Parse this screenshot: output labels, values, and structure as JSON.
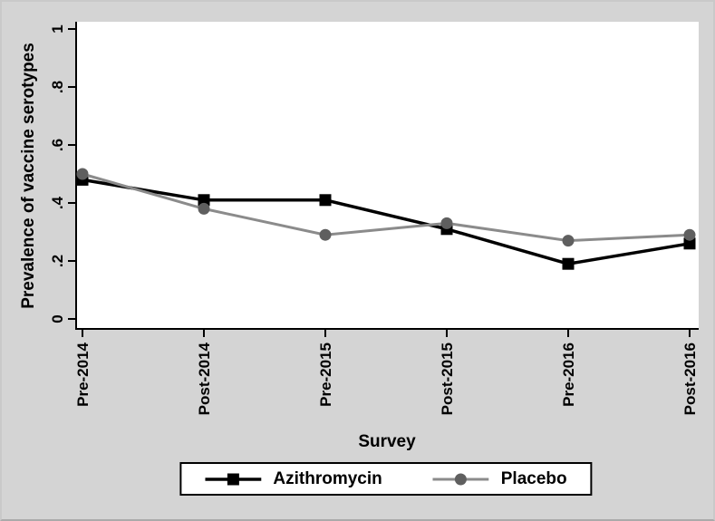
{
  "figure": {
    "background_color": "#d4d4d4",
    "plot_background_color": "#ffffff",
    "axis_color": "#000000",
    "text_color": "#000000"
  },
  "chart_data": {
    "type": "line",
    "title": "",
    "xlabel": "Survey",
    "ylabel": "Prevalence of vaccine serotypes",
    "categories": [
      "Pre-2014",
      "Post-2014",
      "Pre-2015",
      "Post-2015",
      "Pre-2016",
      "Post-2016"
    ],
    "y_tick_labels": [
      "0",
      ".2",
      ".4",
      ".6",
      ".8",
      "1"
    ],
    "y_tick_values": [
      0,
      0.2,
      0.4,
      0.6,
      0.8,
      1
    ],
    "ylim": [
      0,
      1
    ],
    "grid": false,
    "tick_label_rotation": -90,
    "legend_position": "bottom",
    "series": [
      {
        "name": "Azithromycin",
        "marker": "square",
        "line_color": "#000000",
        "marker_color": "#000000",
        "values": [
          0.48,
          0.41,
          0.41,
          0.31,
          0.19,
          0.26
        ]
      },
      {
        "name": "Placebo",
        "marker": "circle",
        "line_color": "#8b8b8b",
        "marker_color": "#5f5f5f",
        "values": [
          0.5,
          0.38,
          0.29,
          0.33,
          0.27,
          0.29
        ]
      }
    ]
  }
}
